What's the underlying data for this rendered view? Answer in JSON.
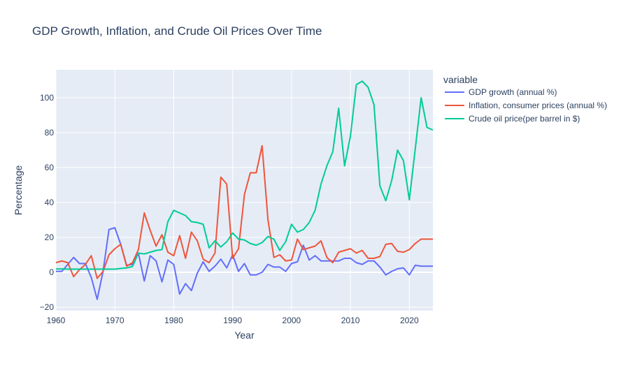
{
  "chart_data": {
    "type": "line",
    "title": "GDP Growth, Inflation, and Crude Oil Prices Over Time",
    "xlabel": "Year",
    "ylabel": "Percentage",
    "xlim": [
      1960,
      2024
    ],
    "ylim": [
      -22,
      116
    ],
    "x_ticks": [
      1960,
      1970,
      1980,
      1990,
      2000,
      2010,
      2020
    ],
    "y_ticks": [
      -20,
      0,
      20,
      40,
      60,
      80,
      100
    ],
    "x_tick_labels": [
      "1960",
      "1970",
      "1980",
      "1990",
      "2000",
      "2010",
      "2020"
    ],
    "y_tick_labels": [
      "−20",
      "0",
      "20",
      "40",
      "60",
      "80",
      "100"
    ],
    "grid": true,
    "legend": {
      "title": "variable",
      "placement": "right"
    },
    "colors": {
      "plot_bg": "#e5ecf6",
      "grid": "#ffffff",
      "text": "#2a3f5f"
    },
    "x": [
      1960,
      1961,
      1962,
      1963,
      1964,
      1965,
      1966,
      1967,
      1968,
      1969,
      1970,
      1971,
      1972,
      1973,
      1974,
      1975,
      1976,
      1977,
      1978,
      1979,
      1980,
      1981,
      1982,
      1983,
      1984,
      1985,
      1986,
      1987,
      1988,
      1989,
      1990,
      1991,
      1992,
      1993,
      1994,
      1995,
      1996,
      1997,
      1998,
      1999,
      2000,
      2001,
      2002,
      2003,
      2004,
      2005,
      2006,
      2007,
      2008,
      2009,
      2010,
      2011,
      2012,
      2013,
      2014,
      2015,
      2016,
      2017,
      2018,
      2019,
      2020,
      2021,
      2022,
      2023,
      2024
    ],
    "series": [
      {
        "name": "GDP growth (annual %)",
        "color": "#636efa",
        "values": [
          0.5,
          0.5,
          4.5,
          8.5,
          5.0,
          5.0,
          -3.0,
          -15.5,
          0.5,
          24.5,
          25.5,
          16.0,
          4.0,
          4.5,
          11.0,
          -5.0,
          9.5,
          6.5,
          -5.5,
          7.0,
          4.5,
          -12.5,
          -6.5,
          -10.5,
          -0.5,
          6.0,
          0.5,
          3.5,
          7.5,
          2.5,
          10.0,
          0.5,
          5.0,
          -1.5,
          -1.5,
          0.0,
          4.5,
          3.0,
          3.0,
          0.5,
          5.0,
          6.0,
          15.5,
          7.0,
          9.5,
          6.5,
          6.5,
          6.5,
          6.5,
          8.0,
          8.0,
          5.5,
          4.5,
          6.5,
          6.5,
          3.0,
          -1.5,
          0.5,
          2.0,
          2.5,
          -1.5,
          4.0,
          3.5,
          3.5,
          3.5
        ]
      },
      {
        "name": "Inflation, consumer prices (annual %)",
        "color": "#ef553b",
        "values": [
          5.5,
          6.5,
          5.5,
          -2.5,
          1.5,
          4.5,
          9.5,
          -3.5,
          0.5,
          10.0,
          13.5,
          16.0,
          3.5,
          5.5,
          13.0,
          34.0,
          24.0,
          15.0,
          21.5,
          11.5,
          9.5,
          21.0,
          8.0,
          23.0,
          18.0,
          7.5,
          5.5,
          11.0,
          54.5,
          50.5,
          8.0,
          13.5,
          44.5,
          57.0,
          57.0,
          72.5,
          30.0,
          8.5,
          10.0,
          6.5,
          7.0,
          19.0,
          13.0,
          14.0,
          15.0,
          18.0,
          8.5,
          5.5,
          11.5,
          12.5,
          13.5,
          11.0,
          12.5,
          8.0,
          8.0,
          9.0,
          16.0,
          16.5,
          12.0,
          11.5,
          13.0,
          16.5,
          19.0,
          19.0,
          19.0
        ]
      },
      {
        "name": "Crude oil price(per barrel in $)",
        "color": "#00cc96",
        "values": [
          1.9,
          1.9,
          1.8,
          1.8,
          1.8,
          1.8,
          1.8,
          1.8,
          1.8,
          1.8,
          1.8,
          2.2,
          2.5,
          3.3,
          11.0,
          10.5,
          11.5,
          12.5,
          13.0,
          29.0,
          35.5,
          34.0,
          32.5,
          29.0,
          28.5,
          27.5,
          14.0,
          18.0,
          14.5,
          17.5,
          22.5,
          19.0,
          18.5,
          16.5,
          15.5,
          17.0,
          20.5,
          19.0,
          12.5,
          17.5,
          27.5,
          23.0,
          24.5,
          28.5,
          35.5,
          50.5,
          61.0,
          69.0,
          94.0,
          61.0,
          78.0,
          107.5,
          109.5,
          106.0,
          96.0,
          49.5,
          41.0,
          52.5,
          70.0,
          64.0,
          41.5,
          70.5,
          100.0,
          83.0,
          81.5
        ]
      }
    ]
  }
}
